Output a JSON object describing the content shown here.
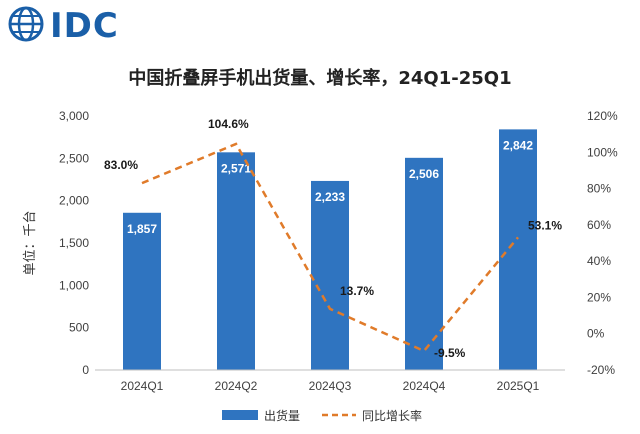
{
  "logo": {
    "text": "IDC"
  },
  "chart_data": {
    "type": "bar",
    "title": "中国折叠屏手机出货量、增长率，24Q1-25Q1",
    "categories": [
      "2024Q1",
      "2024Q2",
      "2024Q3",
      "2024Q4",
      "2025Q1"
    ],
    "series": [
      {
        "name": "出货量",
        "type": "bar",
        "axis": "left",
        "color": "#2f74c0",
        "values": [
          1857,
          2571,
          2233,
          2506,
          2842
        ],
        "labels": [
          "1,857",
          "2,571",
          "2,233",
          "2,506",
          "2,842"
        ]
      },
      {
        "name": "同比增长率",
        "type": "line",
        "axis": "right",
        "color": "#e07b2a",
        "dashed": true,
        "values": [
          83.0,
          104.6,
          13.7,
          -9.5,
          53.1
        ],
        "labels": [
          "83.0%",
          "104.6%",
          "13.7%",
          "-9.5%",
          "53.1%"
        ]
      }
    ],
    "ylabel": "单位：千台",
    "ylim": [
      0,
      3000
    ],
    "y_ticks": [
      "3,000",
      "2,500",
      "2,000",
      "1,500",
      "1,000",
      "500",
      "0"
    ],
    "y2lim": [
      -20,
      120
    ],
    "y2_ticks": [
      "120%",
      "100%",
      "80%",
      "60%",
      "40%",
      "20%",
      "0%",
      "-20%"
    ],
    "grid": false,
    "legend_position": "bottom"
  }
}
